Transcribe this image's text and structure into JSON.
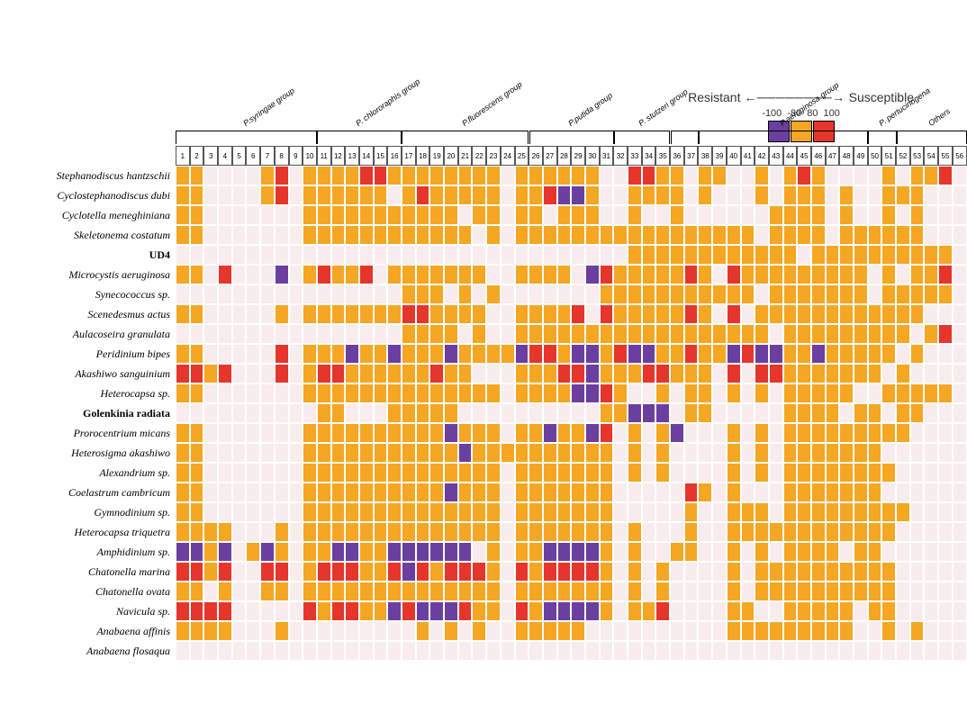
{
  "legend": {
    "left_label": "Resistant",
    "right_label": "Susceptible",
    "arrow": "←────────→",
    "ticks": [
      "-100",
      "-80",
      "80",
      "100"
    ],
    "swatch_colors": [
      "#6b3fa0",
      "#f5a623",
      "#e6352b"
    ]
  },
  "colors": {
    "empty": "#f9ecec",
    "orange": "#f5a623",
    "red": "#e6352b",
    "purple": "#6b3fa0",
    "bg": "#ffffff"
  },
  "cell_size": 15.7,
  "n_cols": 56,
  "col_labels": [
    "1",
    "2",
    "3",
    "4",
    "5",
    "6",
    "7",
    "8",
    "9",
    "10",
    "11",
    "12",
    "13",
    "14",
    "15",
    "16",
    "17",
    "18",
    "19",
    "20",
    "21",
    "22",
    "23",
    "24",
    "25",
    "26",
    "27",
    "28",
    "29",
    "30",
    "31",
    "32",
    "33",
    "34",
    "35",
    "36",
    "37",
    "38",
    "39",
    "40",
    "41",
    "42",
    "43",
    "44",
    "45",
    "46",
    "47",
    "48",
    "49",
    "50",
    "51",
    "52",
    "53",
    "54",
    "55",
    "56"
  ],
  "groups": [
    {
      "label": "P.syringae group",
      "start": 1,
      "end": 10
    },
    {
      "label": "P. chlororaphis group",
      "start": 11,
      "end": 16
    },
    {
      "label": "P.fluorescens group",
      "start": 17,
      "end": 25
    },
    {
      "label": "P.putida group",
      "start": 26,
      "end": 31
    },
    {
      "label": "P. stutzeri group",
      "start": 32,
      "end": 35
    },
    {
      "label": "",
      "start": 36,
      "end": 37
    },
    {
      "label": "P.aeruginosa group",
      "start": 38,
      "end": 49
    },
    {
      "label": "P. pertucinogena",
      "start": 50,
      "end": 51
    },
    {
      "label": "Others",
      "start": 52,
      "end": 56
    }
  ],
  "rows": [
    {
      "label": "Stephanodiscus hantzschii",
      "italic": true,
      "cells": "ooE EEEorE oooorr ooooooooE oooooo EErr ooEoo EEoEoroEE EE oEoor"
    },
    {
      "label": "Cyclostephanodiscus dubi",
      "italic": true,
      "cells": "ooE EEEorE oooooo EoroooooE oorppo EEoo ooEoE EEoEoooEo EE oooEE"
    },
    {
      "label": "Cyclotella meneghiniana",
      "italic": true,
      "cells": "ooE EEEEEE oooooo oooooEooE ooEooo EEoE EoEEE EEEooooEo EE oEoEE"
    },
    {
      "label": "Skeletonema costatum",
      "italic": true,
      "cells": "ooE EEEEEE oooooo ooooooEoE oooooo oooo ooooo ooEooooEo oo oooEE"
    },
    {
      "label": "UD4",
      "italic": false,
      "cells": "EEE EEEEEE EEEEEE EEEEEEEEE EEEEEE EEoo ooooo oooooEooo oo ooooo"
    },
    {
      "label": "Microcystis aeruginosa",
      "italic": true,
      "cells": "ooE rEEEpE oroorE oooooooEE ooooEp rooo ooroE roooooooo oE oEoor"
    },
    {
      "label": "Synecococcus sp.",
      "italic": true,
      "cells": "EEE EEEEEE EEEEEE EoooEoEoE EEEEEE oooo ooooo ooEoooooo oE ooooo"
    },
    {
      "label": "Scenedesmus actus",
      "italic": true,
      "cells": "ooE EEEEoE oooooo orrooooEE oooorE rooo ooroE rEooooooo oo oooEE"
    },
    {
      "label": "Aulacoseira granulata",
      "italic": true,
      "cells": "EEE EEEEEE EEEEEE EooooEoEE oooooo oooo ooooo oooEooooo oo ooEor"
    },
    {
      "label": "Peridinium bipes",
      "italic": true,
      "cells": "ooE EEEErE ooopoo pooopoooo prropp orpp ooroo prppoopoo oo oEoEE"
    },
    {
      "label": "Akashiwo sanguinium",
      "italic": true,
      "cells": "rro rEEErE orrooo ooorooEEE ooorrp ooor roooE rErrooooo oo EoEEE"
    },
    {
      "label": "Heterocapsa sp.",
      "italic": true,
      "cells": "ooE EEEEEE oooooo ooooooooE oooopp roEE oEooE oEoEooooo EE ooooo"
    },
    {
      "label": "Golenkinia radiata",
      "italic": false,
      "cells": "EEE EEEEEE EooEEE oooooEEEE EEEEEE oopp pEooE EEEEooooE oo EooEE"
    },
    {
      "label": "Prorocentrium micans",
      "italic": true,
      "cells": "ooE EEEEEE oooooo oooopoooE oopoop rEoE opEEE oEoEooooo oo ooEEE"
    },
    {
      "label": "Heterosigma akashiwo",
      "italic": true,
      "cells": "ooE EEEEEE oooooo ooooopooo oooooo oEoE oEEEE oEoEooooo oo EEEEE"
    },
    {
      "label": "Alexandrium sp.",
      "italic": true,
      "cells": "ooE EEEEEE oooooo ooooooooE oooooo oEoE oEEEE oEoEooooo oo oEEEE"
    },
    {
      "label": "Coelastrum cambricum",
      "italic": true,
      "cells": "ooE EEEEEE oooooo oooopoooE oooooo oEEE EEroE oEEEooooo oo EEEEE"
    },
    {
      "label": "Gymnodinium sp.",
      "italic": true,
      "cells": "ooE EEEEEE oooooo ooooooooE oooooo oEEE EEoEE oooEooooo oo ooEEE"
    },
    {
      "label": "Heterocapsa triquetra",
      "italic": true,
      "cells": "ooo oEEEoE oooooo ooooooooE oooooo oEoE EEoEE ooooooooo oo oEEEE"
    },
    {
      "label": "Amphidinium sp.",
      "italic": true,
      "cells": "ppo pEopoE ooppoo ppppppEoE oopppp oEoE EooEE oEoEooooE oo EEEEE"
    },
    {
      "label": "Chatonella marina",
      "italic": true,
      "cells": "rro rEErrE orrroo rprorrroE rorrrr oEoE oEEEE oEooooooo oo oEEEE"
    },
    {
      "label": "Chatonella ovata",
      "italic": true,
      "cells": "ooE oEEooE oooooo ooooooooE oooooo oEoE oEEEE oEooooooo oo oEEEE"
    },
    {
      "label": "Navicula sp.",
      "italic": true,
      "cells": "rrr rEEEEE rorroo prppprooE ropppp oEoo rEEEE ooEEooooo Eo oEEEE"
    },
    {
      "label": "Anabaena affinis",
      "italic": true,
      "cells": "ooo oEEEoE EEEEEE EEoEoEoEE oooooE EEEE EEEEE ooooooooo EE oEoEE"
    },
    {
      "label": "Anabaena flosaqua",
      "italic": true,
      "cells": "EEE EEEEEE EEEEEE EEEEEEEEE EEEEEE EEEE EEEEE EEEEEEEEE EE EEEEE"
    }
  ],
  "font": {
    "row_label_size": 12,
    "col_num_size": 8,
    "group_label_size": 9
  }
}
